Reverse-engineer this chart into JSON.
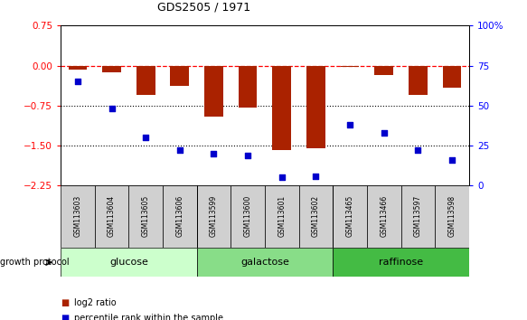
{
  "title": "GDS2505 / 1971",
  "samples": [
    "GSM113603",
    "GSM113604",
    "GSM113605",
    "GSM113606",
    "GSM113599",
    "GSM113600",
    "GSM113601",
    "GSM113602",
    "GSM113465",
    "GSM113466",
    "GSM113597",
    "GSM113598"
  ],
  "log2_ratio": [
    -0.08,
    -0.12,
    -0.55,
    -0.38,
    -0.95,
    -0.78,
    -1.58,
    -1.55,
    -0.02,
    -0.18,
    -0.55,
    -0.42
  ],
  "percentile_rank": [
    65,
    48,
    30,
    22,
    20,
    19,
    5,
    6,
    38,
    33,
    22,
    16
  ],
  "groups": [
    {
      "label": "glucose",
      "start": 0,
      "end": 4,
      "color": "#ccffcc"
    },
    {
      "label": "galactose",
      "start": 4,
      "end": 8,
      "color": "#88dd88"
    },
    {
      "label": "raffinose",
      "start": 8,
      "end": 12,
      "color": "#44bb44"
    }
  ],
  "ylim_left": [
    -2.25,
    0.75
  ],
  "ylim_right": [
    0,
    100
  ],
  "yticks_left": [
    -2.25,
    -1.5,
    -0.75,
    0,
    0.75
  ],
  "yticks_right": [
    0,
    25,
    50,
    75,
    100
  ],
  "bar_color": "#aa2200",
  "dot_color": "#0000cc",
  "dotted_hlines": [
    -0.75,
    -1.5
  ],
  "legend_items": [
    {
      "label": "log2 ratio",
      "color": "#aa2200"
    },
    {
      "label": "percentile rank within the sample",
      "color": "#0000cc"
    }
  ]
}
